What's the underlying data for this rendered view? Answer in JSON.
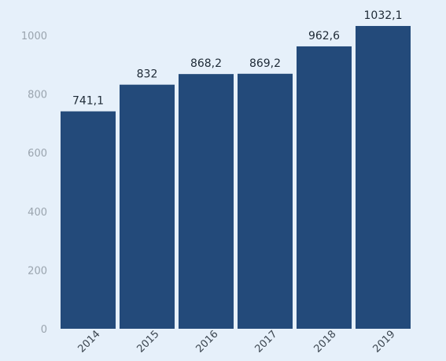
{
  "chart_data": {
    "type": "bar",
    "categories": [
      "2014",
      "2015",
      "2016",
      "2017",
      "2018",
      "2019"
    ],
    "values": [
      741.1,
      832,
      868.2,
      869.2,
      962.6,
      1032.1
    ],
    "data_labels": [
      "741,1",
      "832",
      "868,2",
      "869,2",
      "962,6",
      "1032,1"
    ],
    "yticks": [
      "0",
      "200",
      "400",
      "600",
      "800",
      "1000"
    ],
    "ylim": [
      0,
      1000
    ],
    "title": "",
    "xlabel": "",
    "ylabel": "",
    "grid": false,
    "colors": {
      "bar": "#234a7a",
      "background": "#e6f0fa"
    }
  }
}
